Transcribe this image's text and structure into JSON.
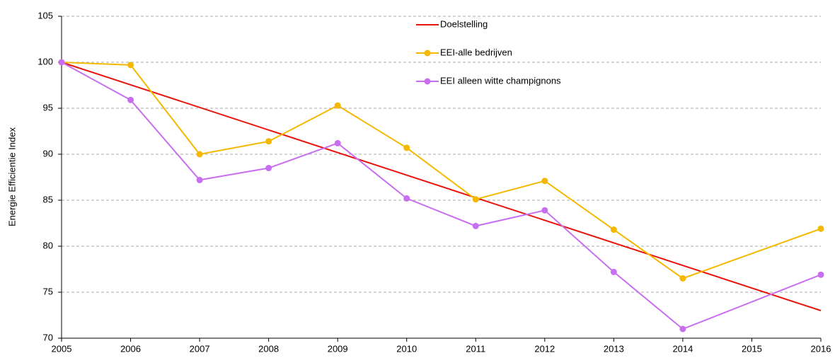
{
  "chart_data": {
    "type": "line",
    "ylabel": "Energie Efficientie Index",
    "xlim": [
      2005,
      2016
    ],
    "xticks": [
      2005,
      2006,
      2007,
      2008,
      2009,
      2010,
      2011,
      2012,
      2013,
      2014,
      2015,
      2016
    ],
    "ylim": [
      70,
      105
    ],
    "yticks": [
      70,
      75,
      80,
      85,
      90,
      95,
      100,
      105
    ],
    "grid": true,
    "legend": "top",
    "series": [
      {
        "name": "Doelstelling",
        "color": "#e8140c",
        "markers": false,
        "x": [
          2005,
          2016
        ],
        "values": [
          100,
          73
        ]
      },
      {
        "name": "EEI-alle bedrijven",
        "color": "#f5b800",
        "markers": true,
        "x": [
          2005,
          2006,
          2007,
          2008,
          2009,
          2010,
          2011,
          2012,
          2013,
          2014,
          2016
        ],
        "values": [
          100,
          99.7,
          90,
          91.4,
          95.3,
          90.7,
          85.1,
          87.1,
          81.8,
          76.5,
          81.9
        ]
      },
      {
        "name": "EEI alleen witte champignons",
        "color": "#c86ef0",
        "markers": true,
        "x": [
          2005,
          2006,
          2007,
          2008,
          2009,
          2010,
          2011,
          2012,
          2013,
          2014,
          2016
        ],
        "values": [
          100,
          95.9,
          87.2,
          88.5,
          91.2,
          85.2,
          82.2,
          83.9,
          77.2,
          71.0,
          76.9
        ]
      }
    ]
  }
}
